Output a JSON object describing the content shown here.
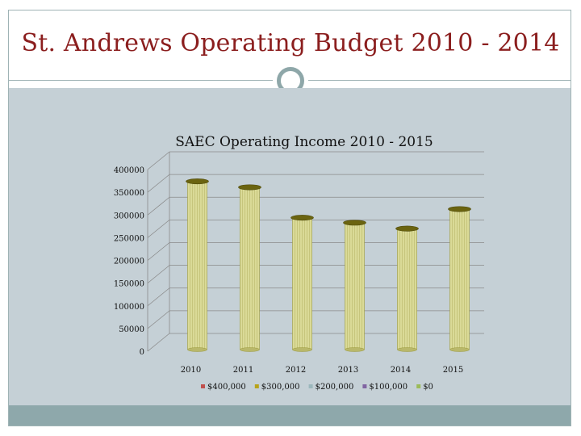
{
  "slide": {
    "title": "St. Andrews Operating Budget 2010 - 2014"
  },
  "chart_data": {
    "type": "bar",
    "title": "SAEC Operating Income 2010 - 2015",
    "categories": [
      "2010",
      "2011",
      "2012",
      "2013",
      "2014",
      "2015"
    ],
    "values": [
      358000,
      345000,
      278000,
      267000,
      254000,
      297000
    ],
    "ylim": [
      0,
      400000
    ],
    "yticks": [
      0,
      50000,
      100000,
      150000,
      200000,
      250000,
      300000,
      350000,
      400000
    ],
    "xlabel": "",
    "ylabel": "",
    "bar_color": "#dada97",
    "bar_cap_color": "#6b6410",
    "grid": true,
    "legend_position": "bottom",
    "legend": [
      {
        "label": "$400,000",
        "color": "#c0504d"
      },
      {
        "label": "$300,000",
        "color": "#b8a31a"
      },
      {
        "label": "$200,000",
        "color": "#9bb7bc"
      },
      {
        "label": "$100,000",
        "color": "#8064a2"
      },
      {
        "label": "$0",
        "color": "#9bbb59"
      }
    ]
  }
}
